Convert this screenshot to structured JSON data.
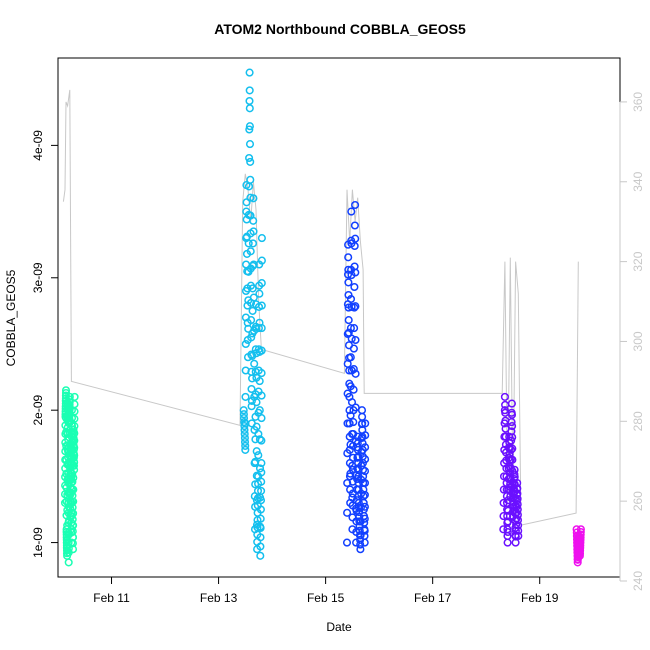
{
  "chart_data": {
    "type": "scatter",
    "title": "ATOM2 Northbound COBBLA_GEOS5",
    "xlabel": "Date",
    "ylabel": "COBBLA_GEOS5",
    "x_unit": "day of February",
    "xlim": [
      10.0,
      20.5
    ],
    "ylim": [
      7.4e-10,
      4.66e-09
    ],
    "y2lim": [
      241,
      371
    ],
    "x_ticks": [
      11,
      13,
      15,
      17,
      19
    ],
    "x_tick_labels": [
      "Feb 11",
      "Feb 13",
      "Feb 15",
      "Feb 17",
      "Feb 19"
    ],
    "y_ticks": [
      1e-09,
      2e-09,
      3e-09,
      4e-09
    ],
    "y_tick_labels": [
      "1e-09",
      "2e-09",
      "3e-09",
      "4e-09"
    ],
    "y2_ticks": [
      240,
      260,
      280,
      300,
      320,
      340,
      360
    ],
    "y2_tick_labels": [
      "240",
      "260",
      "280",
      "300",
      "320",
      "340",
      "360"
    ],
    "grid": false,
    "colors": {
      "flight1": "#1affb3",
      "flight2": "#14bfee",
      "flight3": "#1240ff",
      "flight4": "#6a10ff",
      "flight5": "#ee10ee",
      "secondary_line": "#c8c8c8",
      "axis": "#000000"
    },
    "flights": [
      {
        "color": "#1affb3",
        "x_range": [
          10.12,
          10.32
        ],
        "samples": [
          [
            10.13,
            1.3e-09
          ],
          [
            10.14,
            1.95e-09
          ],
          [
            10.15,
            2.15e-09
          ],
          [
            10.16,
            1.1e-09
          ],
          [
            10.17,
            9e-10
          ],
          [
            10.18,
            2.05e-09
          ],
          [
            10.19,
            1.6e-09
          ],
          [
            10.2,
            8.5e-10
          ],
          [
            10.21,
            1.9e-09
          ],
          [
            10.22,
            2.1e-09
          ],
          [
            10.23,
            1.2e-09
          ],
          [
            10.24,
            1.75e-09
          ],
          [
            10.25,
            1e-09
          ],
          [
            10.26,
            2e-09
          ],
          [
            10.27,
            1.4e-09
          ],
          [
            10.28,
            9.5e-10
          ],
          [
            10.29,
            1.85e-09
          ],
          [
            10.3,
            1.55e-09
          ],
          [
            10.31,
            2.1e-09
          ]
        ]
      },
      {
        "color": "#14bfee",
        "x_range": [
          13.45,
          13.82
        ],
        "samples": [
          [
            13.47,
            2e-09
          ],
          [
            13.5,
            1.7e-09
          ],
          [
            13.52,
            3.7e-09
          ],
          [
            13.55,
            2.4e-09
          ],
          [
            13.58,
            4.55e-09
          ],
          [
            13.6,
            3.2e-09
          ],
          [
            13.62,
            1.9e-09
          ],
          [
            13.65,
            3.6e-09
          ],
          [
            13.68,
            1.1e-09
          ],
          [
            13.7,
            2.8e-09
          ],
          [
            13.72,
            9.5e-10
          ],
          [
            13.74,
            1.5e-09
          ],
          [
            13.76,
            3.1e-09
          ],
          [
            13.78,
            9e-10
          ],
          [
            13.8,
            1.6e-09
          ],
          [
            13.81,
            3.3e-09
          ]
        ]
      },
      {
        "color": "#1240ff",
        "x_range": [
          15.38,
          15.75
        ],
        "samples": [
          [
            15.4,
            1e-09
          ],
          [
            15.42,
            3.25e-09
          ],
          [
            15.44,
            2.3e-09
          ],
          [
            15.46,
            1.3e-09
          ],
          [
            15.48,
            3.5e-09
          ],
          [
            15.5,
            1.1e-09
          ],
          [
            15.52,
            2e-09
          ],
          [
            15.55,
            3.55e-09
          ],
          [
            15.57,
            1e-09
          ],
          [
            15.6,
            1.8e-09
          ],
          [
            15.62,
            1.3e-09
          ],
          [
            15.65,
            9.5e-10
          ],
          [
            15.68,
            2e-09
          ],
          [
            15.7,
            1.5e-09
          ],
          [
            15.73,
            1e-09
          ],
          [
            15.74,
            1.9e-09
          ]
        ]
      },
      {
        "color": "#6a10ff",
        "x_range": [
          18.3,
          18.62
        ],
        "samples": [
          [
            18.32,
            1.1e-09
          ],
          [
            18.35,
            2.1e-09
          ],
          [
            18.38,
            1.5e-09
          ],
          [
            18.4,
            1e-09
          ],
          [
            18.43,
            1.8e-09
          ],
          [
            18.45,
            1.35e-09
          ],
          [
            18.48,
            2.05e-09
          ],
          [
            18.5,
            1.2e-09
          ],
          [
            18.53,
            1.55e-09
          ],
          [
            18.55,
            1e-09
          ],
          [
            18.58,
            1.45e-09
          ],
          [
            18.6,
            1.05e-09
          ]
        ]
      },
      {
        "color": "#ee10ee",
        "x_range": [
          19.68,
          19.78
        ],
        "samples": [
          [
            19.69,
            1.1e-09
          ],
          [
            19.71,
            8.5e-10
          ],
          [
            19.73,
            1.05e-09
          ],
          [
            19.75,
            9e-10
          ],
          [
            19.77,
            1.1e-09
          ]
        ]
      }
    ],
    "secondary_line": [
      [
        10.1,
        335
      ],
      [
        10.13,
        338
      ],
      [
        10.15,
        360
      ],
      [
        10.18,
        359
      ],
      [
        10.22,
        363
      ],
      [
        10.25,
        290
      ],
      [
        13.4,
        279
      ],
      [
        13.45,
        335
      ],
      [
        13.5,
        342
      ],
      [
        13.55,
        338
      ],
      [
        13.6,
        330
      ],
      [
        13.65,
        340
      ],
      [
        13.7,
        333
      ],
      [
        13.75,
        310
      ],
      [
        13.8,
        298
      ],
      [
        15.35,
        292
      ],
      [
        15.4,
        338
      ],
      [
        15.45,
        325
      ],
      [
        15.5,
        338
      ],
      [
        15.55,
        330
      ],
      [
        15.6,
        336
      ],
      [
        15.65,
        325
      ],
      [
        15.7,
        318
      ],
      [
        15.72,
        287
      ],
      [
        18.3,
        287
      ],
      [
        18.35,
        320
      ],
      [
        18.4,
        260
      ],
      [
        18.45,
        321
      ],
      [
        18.5,
        260
      ],
      [
        18.55,
        320
      ],
      [
        18.6,
        312
      ],
      [
        18.65,
        254
      ],
      [
        19.68,
        257
      ],
      [
        19.72,
        320
      ]
    ]
  }
}
